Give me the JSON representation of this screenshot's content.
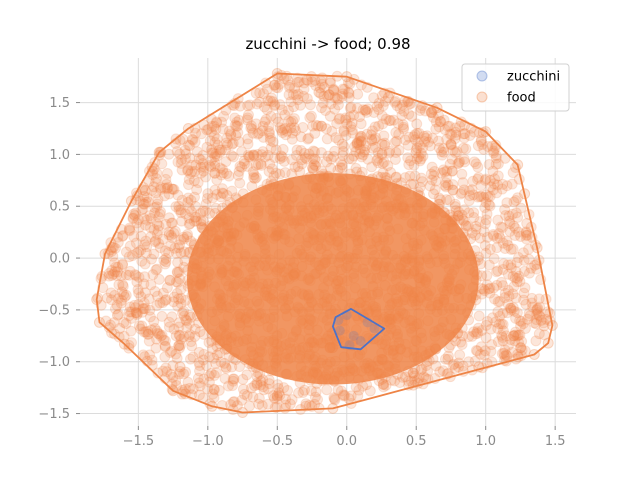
{
  "chart_data": {
    "type": "scatter",
    "title": "zucchini -> food; 0.98",
    "xlabel": "",
    "ylabel": "",
    "xlim": [
      -1.92,
      1.65
    ],
    "ylim": [
      -1.62,
      1.93
    ],
    "xticks": [
      -1.5,
      -1.0,
      -0.5,
      0.0,
      0.5,
      1.0,
      1.5
    ],
    "xtick_labels": [
      "−1.5",
      "−1.0",
      "−0.5",
      "0.0",
      "0.5",
      "1.0",
      "1.5"
    ],
    "yticks": [
      -1.5,
      -1.0,
      -0.5,
      0.0,
      0.5,
      1.0,
      1.5
    ],
    "ytick_labels": [
      "−1.5",
      "−1.0",
      "−0.5",
      "0.0",
      "0.5",
      "1.0",
      "1.5"
    ],
    "grid": true,
    "legend_position": "top-right",
    "series": [
      {
        "name": "zucchini",
        "color": "#4c72c8",
        "point_alpha": 0.2,
        "hull": [
          [
            0.03,
            -0.49
          ],
          [
            0.27,
            -0.68
          ],
          [
            0.1,
            -0.88
          ],
          [
            -0.04,
            -0.86
          ],
          [
            -0.1,
            -0.66
          ],
          [
            -0.08,
            -0.57
          ]
        ],
        "points": [
          [
            0.0,
            -0.55
          ],
          [
            0.15,
            -0.62
          ],
          [
            0.05,
            -0.75
          ],
          [
            -0.05,
            -0.7
          ],
          [
            0.1,
            -0.8
          ],
          [
            0.2,
            -0.68
          ],
          [
            -0.06,
            -0.6
          ],
          [
            0.02,
            -0.84
          ]
        ]
      },
      {
        "name": "food",
        "color": "#ee8446",
        "point_alpha": 0.2,
        "hull": [
          [
            -0.5,
            1.78
          ],
          [
            0.0,
            1.75
          ],
          [
            0.65,
            1.45
          ],
          [
            1.0,
            1.22
          ],
          [
            1.23,
            0.9
          ],
          [
            1.37,
            0.1
          ],
          [
            1.48,
            -0.65
          ],
          [
            1.45,
            -0.82
          ],
          [
            1.35,
            -0.93
          ],
          [
            -0.1,
            -1.45
          ],
          [
            -0.75,
            -1.49
          ],
          [
            -0.97,
            -1.43
          ],
          [
            -1.25,
            -1.28
          ],
          [
            -1.6,
            -0.83
          ],
          [
            -1.78,
            -0.62
          ],
          [
            -1.8,
            -0.4
          ],
          [
            -1.74,
            0.04
          ],
          [
            -1.55,
            0.55
          ],
          [
            -1.35,
            1.02
          ],
          [
            -1.14,
            1.25
          ]
        ],
        "extreme_points": [
          [
            -0.5,
            1.78
          ],
          [
            0.0,
            1.75
          ],
          [
            0.65,
            1.45
          ],
          [
            1.0,
            1.22
          ],
          [
            1.23,
            0.9
          ],
          [
            1.37,
            0.1
          ],
          [
            1.48,
            -0.65
          ],
          [
            1.45,
            -0.82
          ],
          [
            1.35,
            -0.93
          ],
          [
            -0.1,
            -1.45
          ],
          [
            -0.75,
            -1.49
          ],
          [
            -0.97,
            -1.43
          ],
          [
            -1.25,
            -1.28
          ],
          [
            -1.6,
            -0.83
          ],
          [
            -1.78,
            -0.62
          ],
          [
            -1.8,
            -0.4
          ],
          [
            -1.74,
            0.04
          ],
          [
            -1.55,
            0.55
          ],
          [
            -1.35,
            1.02
          ],
          [
            -1.14,
            1.25
          ],
          [
            1.28,
            0.62
          ],
          [
            1.4,
            -0.6
          ],
          [
            -1.65,
            -0.55
          ],
          [
            -1.2,
            -1.05
          ],
          [
            0.85,
            1.2
          ],
          [
            -0.2,
            1.6
          ],
          [
            0.3,
            1.55
          ],
          [
            1.2,
            -0.75
          ],
          [
            -1.45,
            0.65
          ],
          [
            0.95,
            -1.05
          ]
        ]
      }
    ]
  }
}
